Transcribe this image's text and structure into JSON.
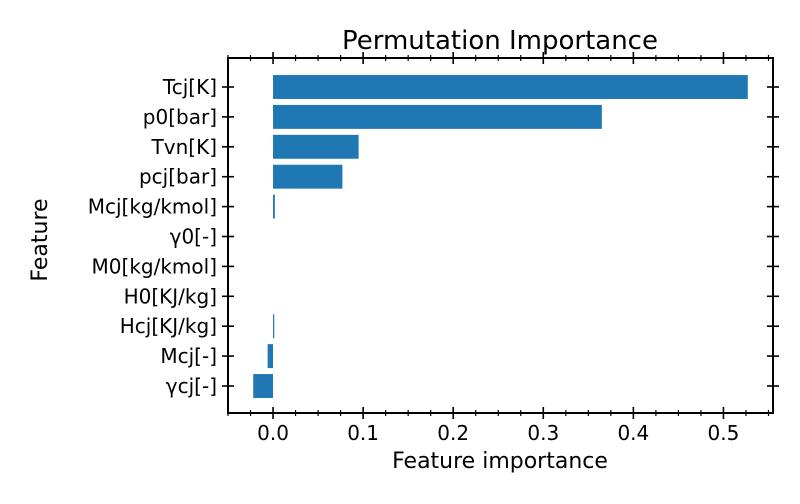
{
  "chart_data": {
    "type": "bar",
    "orientation": "horizontal",
    "title": "Permutation Importance",
    "xlabel": "Feature importance",
    "ylabel": "Feature",
    "categories": [
      "Tcj[K]",
      "p0[bar]",
      "Tvn[K]",
      "pcj[bar]",
      "Mcj[kg/kmol]",
      "γ0[-]",
      "M0[kg/kmol]",
      "H0[KJ/kg]",
      "Hcj[KJ/kg]",
      "Mcj[-]",
      "γcj[-]"
    ],
    "values": [
      0.527,
      0.365,
      0.095,
      0.077,
      0.002,
      0.0,
      0.0,
      0.0,
      0.001,
      -0.006,
      -0.022
    ],
    "xlim": [
      -0.05,
      0.555
    ],
    "xticks": [
      0.0,
      0.1,
      0.2,
      0.3,
      0.4,
      0.5
    ],
    "xtick_labels": [
      "0.0",
      "0.1",
      "0.2",
      "0.3",
      "0.4",
      "0.5"
    ],
    "grid": false,
    "bar_color": "#1f77b4"
  }
}
